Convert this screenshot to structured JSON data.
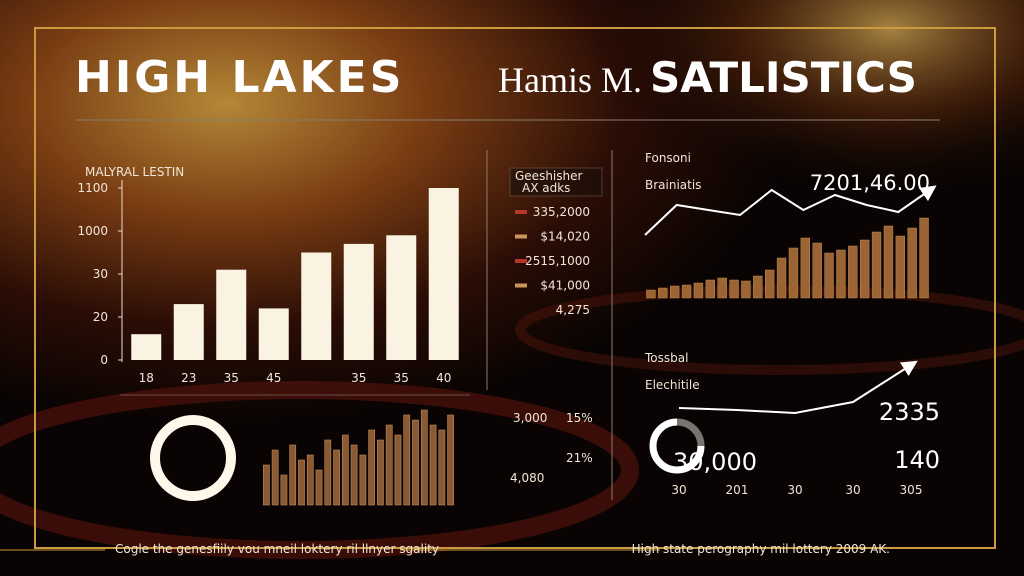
{
  "header": {
    "title": "HIGH LAKES",
    "subtitle": [
      "Hamis M.",
      "SATLISTICS"
    ]
  },
  "chart_data": [
    {
      "type": "bar",
      "title": "MALYRAL LESTIN",
      "categories": [
        "18",
        "23",
        "35",
        "45",
        null,
        "35",
        "35",
        "40"
      ],
      "values": [
        6,
        13,
        21,
        12,
        25,
        27,
        29,
        40
      ],
      "color": "#fbf3e2",
      "ylim": [
        0,
        40
      ],
      "yticks": [
        0,
        {
          "value": 10,
          "label": "20"
        },
        {
          "value": 20,
          "label": "30"
        },
        {
          "value": 30,
          "label": "1000"
        },
        {
          "value": 40,
          "label": "1100"
        }
      ]
    },
    {
      "type": "bar",
      "values": [
        40,
        55,
        30,
        60,
        45,
        50,
        35,
        65,
        55,
        70,
        60,
        50,
        75,
        65,
        80,
        70,
        90,
        85,
        95,
        80,
        75,
        90
      ],
      "color": "#8a5a35"
    },
    {
      "type": "combo",
      "title": "Fonsoni",
      "subtitle": "Brainiatis",
      "annotation": "7201,46.00",
      "series": [
        {
          "type": "line",
          "color": "#ffffff",
          "values": [
            63,
            93,
            88,
            83,
            108,
            88,
            103,
            93,
            86,
            108
          ]
        },
        {
          "type": "bar",
          "color": "#9a6434",
          "values": [
            8,
            10,
            12,
            13,
            15,
            18,
            20,
            18,
            17,
            22,
            28,
            40,
            50,
            60,
            55,
            45,
            48,
            52,
            58,
            66,
            72,
            62,
            70,
            80
          ]
        }
      ]
    },
    {
      "type": "line",
      "title": "Tossbal",
      "subtitle": "Elechitile",
      "categories": [
        "30",
        "201",
        "30",
        "30",
        "305"
      ],
      "values": [
        22,
        20,
        17,
        28,
        65
      ],
      "color": "#ffffff",
      "annotations": [
        "2335",
        "140"
      ]
    },
    {
      "type": "pie",
      "values": [
        75,
        25
      ],
      "colors": [
        "#ffffff",
        "#7a746e"
      ],
      "center_label": "30,000"
    }
  ],
  "ledger": {
    "heading": "Geeshisher",
    "subheading": "AX adks",
    "items": [
      {
        "text": "335,2000",
        "color": "#b5362a"
      },
      {
        "text": "$14,020",
        "color": "#c9955a"
      },
      {
        "text": "2515,1000",
        "color": "#b5362a"
      },
      {
        "text": "$41,000",
        "color": "#c9955a"
      },
      {
        "text": "4,275"
      }
    ]
  },
  "stats": [
    "3,000",
    "15%",
    "4,080",
    "21%"
  ],
  "footer": {
    "left": "Cogle the genesfiily vou mneil loktery ril llnyer sgality",
    "right": "High state perography mil lottery 2009 AK."
  }
}
